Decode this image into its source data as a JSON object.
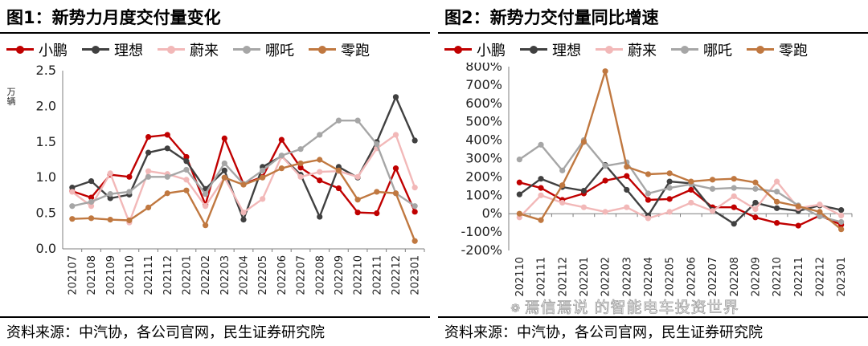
{
  "chart_data": [
    {
      "type": "line",
      "title": "图1：新势力月度交付量变化",
      "ylabel": "万辆",
      "ylim": [
        0,
        2.5
      ],
      "yticks": [
        "0.0",
        "0.5",
        "1.0",
        "1.5",
        "2.0",
        "2.5"
      ],
      "categories": [
        "202107",
        "202108",
        "202109",
        "202110",
        "202111",
        "202112",
        "202201",
        "202202",
        "202203",
        "202204",
        "202205",
        "202206",
        "202207",
        "202208",
        "202209",
        "202210",
        "202211",
        "202212",
        "202301"
      ],
      "series": [
        {
          "name": "小鹏",
          "color": "#c00000",
          "values": [
            0.81,
            0.72,
            1.04,
            1.01,
            1.57,
            1.6,
            1.29,
            0.62,
            1.55,
            0.91,
            1.01,
            1.53,
            1.14,
            0.96,
            0.85,
            0.51,
            0.5,
            1.13,
            0.52
          ]
        },
        {
          "name": "理想",
          "color": "#404040",
          "values": [
            0.86,
            0.95,
            0.71,
            0.76,
            1.35,
            1.41,
            1.23,
            0.84,
            1.1,
            0.41,
            1.15,
            1.3,
            1.04,
            0.45,
            1.15,
            1.0,
            1.5,
            2.13,
            1.52
          ]
        },
        {
          "name": "蔚来",
          "color": "#f2b8b8",
          "values": [
            0.8,
            0.6,
            1.06,
            0.37,
            1.09,
            1.05,
            0.97,
            0.6,
            1.0,
            0.51,
            0.7,
            1.3,
            1.01,
            1.08,
            1.09,
            1.01,
            1.41,
            1.6,
            0.86
          ]
        },
        {
          "name": "哪吒",
          "color": "#a6a6a6",
          "values": [
            0.6,
            0.66,
            0.77,
            0.8,
            1.01,
            1.01,
            1.11,
            0.77,
            1.2,
            0.91,
            1.1,
            1.31,
            1.4,
            1.6,
            1.8,
            1.8,
            1.47,
            0.78,
            0.6
          ]
        },
        {
          "name": "零跑",
          "color": "#c07840",
          "values": [
            0.42,
            0.43,
            0.41,
            0.4,
            0.58,
            0.78,
            0.82,
            0.33,
            1.0,
            0.9,
            1.0,
            1.13,
            1.2,
            1.25,
            1.1,
            0.69,
            0.8,
            0.78,
            0.11
          ]
        }
      ],
      "source": "资料来源：中汽协，各公司官网，民生证券研究院"
    },
    {
      "type": "line",
      "title": "图2：新势力交付量同比增速",
      "ylim": [
        -200,
        800
      ],
      "yticks": [
        "-200%",
        "-100%",
        "0%",
        "100%",
        "200%",
        "300%",
        "400%",
        "500%",
        "600%",
        "700%",
        "800%"
      ],
      "categories": [
        "202110",
        "202111",
        "202112",
        "202201",
        "202202",
        "202203",
        "202204",
        "202205",
        "202206",
        "202207",
        "202208",
        "202209",
        "202210",
        "202211",
        "202212",
        "202301"
      ],
      "series": [
        {
          "name": "小鹏",
          "color": "#c00000",
          "values": [
            170,
            140,
            75,
            110,
            180,
            205,
            75,
            80,
            130,
            35,
            35,
            -20,
            -50,
            -65,
            -10,
            -60
          ]
        },
        {
          "name": "理想",
          "color": "#404040",
          "values": [
            105,
            190,
            145,
            125,
            265,
            130,
            -10,
            175,
            165,
            20,
            -55,
            60,
            30,
            15,
            45,
            20
          ]
        },
        {
          "name": "蔚来",
          "color": "#f2b8b8",
          "values": [
            -20,
            100,
            60,
            35,
            10,
            35,
            -25,
            10,
            60,
            15,
            95,
            25,
            175,
            30,
            50,
            -10
          ]
        },
        {
          "name": "哪吒",
          "color": "#a6a6a6",
          "values": [
            295,
            375,
            235,
            400,
            260,
            280,
            110,
            140,
            160,
            135,
            140,
            135,
            120,
            45,
            -15,
            -45
          ]
        },
        {
          "name": "零跑",
          "color": "#c07840",
          "values": [
            0,
            -35,
            155,
            390,
            775,
            255,
            215,
            220,
            175,
            185,
            190,
            170,
            65,
            40,
            10,
            -85
          ]
        }
      ],
      "source": "资料来源：中汽协，各公司官网，民生证券研究院"
    }
  ],
  "watermark": "焉信焉说 的智能电车投资世界"
}
